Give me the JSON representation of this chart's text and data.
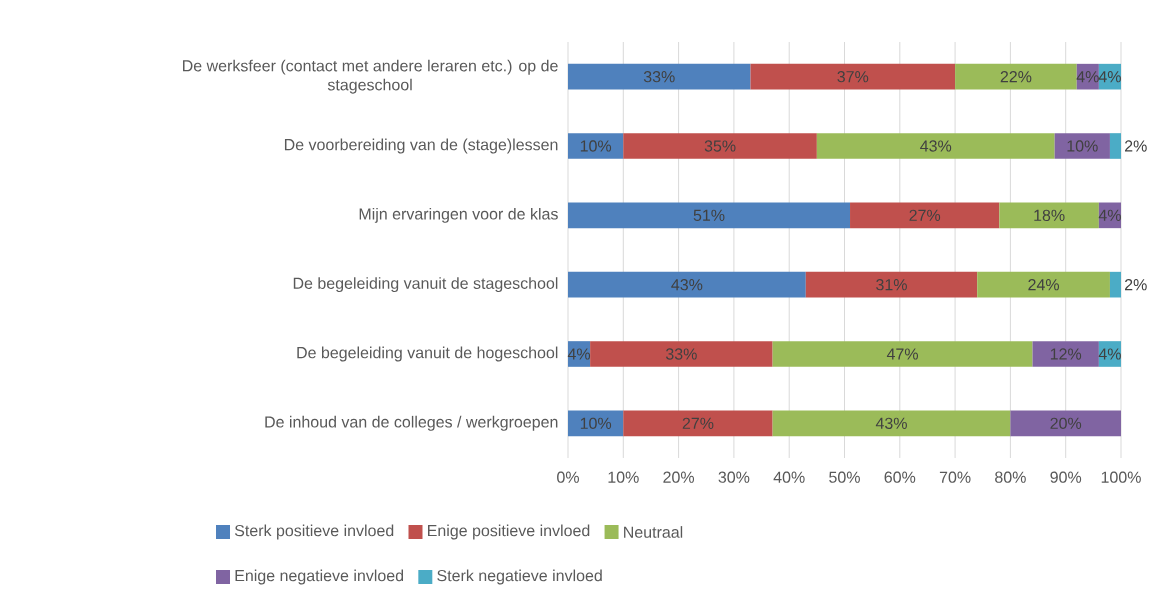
{
  "chart_data": {
    "type": "bar",
    "orientation": "horizontal",
    "stacked": true,
    "categories": [
      "De werksfeer (contact met andere leraren etc.) op de stageschool",
      "De voorbereiding van de (stage)lessen",
      "Mijn ervaringen voor de klas",
      "De begeleiding vanuit de stageschool",
      "De begeleiding vanuit de hogeschool",
      "De inhoud van de colleges / werkgroepen"
    ],
    "series": [
      {
        "name": "Sterk positieve invloed",
        "color": "#4f81bd",
        "values": [
          33,
          10,
          51,
          43,
          4,
          10
        ],
        "value_labels": [
          "33%",
          "10%",
          "51%",
          "43%",
          "4%",
          "10%"
        ]
      },
      {
        "name": "Enige positieve invloed",
        "color": "#c0504d",
        "values": [
          37,
          35,
          27,
          31,
          33,
          27
        ],
        "value_labels": [
          "37%",
          "35%",
          "27%",
          "31%",
          "33%",
          "27%"
        ]
      },
      {
        "name": "Neutraal",
        "color": "#9bbb59",
        "values": [
          22,
          43,
          18,
          24,
          47,
          43
        ],
        "value_labels": [
          "22%",
          "43%",
          "18%",
          "24%",
          "47%",
          "43%"
        ]
      },
      {
        "name": "Enige negatieve invloed",
        "color": "#8064a2",
        "values": [
          4,
          10,
          4,
          null,
          12,
          20
        ],
        "value_labels": [
          "4%",
          "10%",
          "4%",
          null,
          "12%",
          "20%"
        ]
      },
      {
        "name": "Sterk negatieve invloed",
        "color": "#4bacc6",
        "values": [
          4,
          2,
          null,
          2,
          4,
          null
        ],
        "value_labels": [
          "4%",
          "2%",
          null,
          "2%",
          "4%",
          null
        ]
      }
    ],
    "xlim": [
      0,
      100
    ],
    "xticks": [
      {
        "value": 0,
        "label": "0%"
      },
      {
        "value": 10,
        "label": "10%"
      },
      {
        "value": 20,
        "label": "20%"
      },
      {
        "value": 30,
        "label": "30%"
      },
      {
        "value": 40,
        "label": "40%"
      },
      {
        "value": 50,
        "label": "50%"
      },
      {
        "value": 60,
        "label": "60%"
      },
      {
        "value": 70,
        "label": "70%"
      },
      {
        "value": 80,
        "label": "80%"
      },
      {
        "value": 90,
        "label": "90%"
      },
      {
        "value": 100,
        "label": "100%"
      }
    ],
    "grid": "x",
    "legend": "bottom"
  }
}
